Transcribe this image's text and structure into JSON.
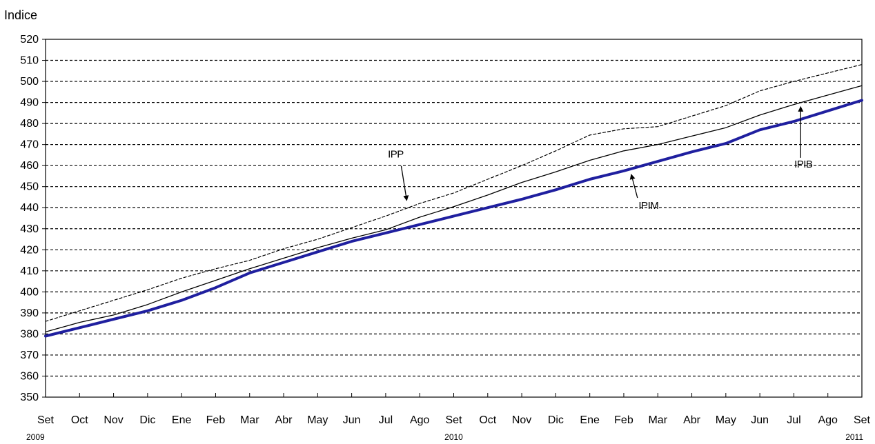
{
  "chart_data": {
    "type": "line",
    "ylabel": "Indice",
    "ylim": [
      350,
      520
    ],
    "ytick_step": 10,
    "grid": "horizontal-dashed",
    "categories": [
      "Set",
      "Oct",
      "Nov",
      "Dic",
      "Ene",
      "Feb",
      "Mar",
      "Abr",
      "May",
      "Jun",
      "Jul",
      "Ago",
      "Set",
      "Oct",
      "Nov",
      "Dic",
      "Ene",
      "Feb",
      "Mar",
      "Abr",
      "May",
      "Jun",
      "Jul",
      "Ago",
      "Set"
    ],
    "year_labels": [
      {
        "index": 0,
        "label": "2009"
      },
      {
        "index": 12,
        "label": "2010"
      },
      {
        "index": 24,
        "label": "2011"
      }
    ],
    "series": [
      {
        "name": "IPIM",
        "color": "#1f1f9f",
        "style": "thick",
        "values": [
          379,
          383,
          387,
          391,
          396,
          402,
          409,
          414,
          419,
          424,
          428,
          432,
          436,
          440,
          444,
          448.5,
          453.5,
          457.5,
          462,
          466.5,
          470.5,
          477,
          481,
          486,
          491
        ]
      },
      {
        "name": "IPIB",
        "color": "#000000",
        "style": "thin",
        "values": [
          381,
          385.5,
          389,
          394,
          400,
          405.5,
          411,
          416,
          421,
          425.5,
          429.5,
          435.5,
          440.5,
          446,
          452,
          457,
          462.5,
          467,
          470,
          474,
          478,
          484,
          489,
          493.5,
          498
        ]
      },
      {
        "name": "IPP",
        "color": "#000000",
        "style": "dashed",
        "values": [
          386,
          391,
          396,
          401,
          406.5,
          411,
          415,
          420.5,
          425,
          430.5,
          436,
          442,
          447,
          453.5,
          460,
          467,
          474.5,
          477.5,
          478.5,
          483.5,
          488.5,
          495.5,
          500,
          504,
          508
        ]
      }
    ],
    "annotations": [
      {
        "text": "IPP",
        "series": "IPP",
        "index": 10.7
      },
      {
        "text": "IPIM",
        "series": "IPIM",
        "index": 17.2
      },
      {
        "text": "IPIB",
        "series": "IPIB",
        "index": 22.2
      }
    ]
  }
}
